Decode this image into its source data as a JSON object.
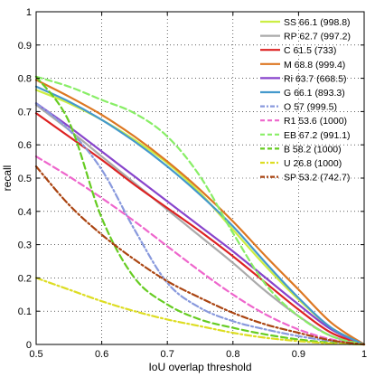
{
  "chart_data": {
    "type": "line",
    "xlabel": "IoU overlap threshold",
    "ylabel": "recall",
    "xlim": [
      0.5,
      1.0
    ],
    "ylim": [
      0,
      1
    ],
    "x_ticks": [
      "0.5",
      "0.6",
      "0.7",
      "0.8",
      "0.9",
      "1"
    ],
    "y_ticks": [
      "0",
      "0.1",
      "0.2",
      "0.3",
      "0.4",
      "0.5",
      "0.6",
      "0.7",
      "0.8",
      "0.9",
      "1"
    ],
    "grid": true,
    "legend_position": "top-right",
    "series": [
      {
        "name": "SS 66.1 (998.8)",
        "color": "#ccee44",
        "dash": "solid",
        "x": [
          0.5,
          0.55,
          0.6,
          0.65,
          0.7,
          0.75,
          0.8,
          0.85,
          0.9,
          0.95,
          1.0
        ],
        "y": [
          0.765,
          0.725,
          0.675,
          0.615,
          0.545,
          0.455,
          0.345,
          0.235,
          0.135,
          0.05,
          0.0
        ]
      },
      {
        "name": "RP 62.7 (997.2)",
        "color": "#aaaaaa",
        "dash": "solid",
        "x": [
          0.5,
          0.55,
          0.6,
          0.65,
          0.7,
          0.75,
          0.8,
          0.85,
          0.9,
          0.95,
          1.0
        ],
        "y": [
          0.72,
          0.645,
          0.565,
          0.485,
          0.405,
          0.325,
          0.245,
          0.16,
          0.085,
          0.025,
          0.0
        ]
      },
      {
        "name": "C 61.5 (733)",
        "color": "#dd2222",
        "dash": "solid",
        "x": [
          0.5,
          0.55,
          0.6,
          0.65,
          0.7,
          0.75,
          0.8,
          0.85,
          0.9,
          0.95,
          1.0
        ],
        "y": [
          0.695,
          0.625,
          0.555,
          0.48,
          0.41,
          0.34,
          0.265,
          0.185,
          0.105,
          0.035,
          0.0
        ]
      },
      {
        "name": "M 68.8 (999.4)",
        "color": "#dd7722",
        "dash": "solid",
        "x": [
          0.5,
          0.55,
          0.6,
          0.65,
          0.7,
          0.75,
          0.8,
          0.85,
          0.9,
          0.95,
          1.0
        ],
        "y": [
          0.795,
          0.745,
          0.69,
          0.625,
          0.55,
          0.465,
          0.37,
          0.265,
          0.165,
          0.065,
          0.0
        ]
      },
      {
        "name": "Ri 63.7 (668.5)",
        "color": "#8844cc",
        "dash": "solid",
        "x": [
          0.5,
          0.55,
          0.6,
          0.65,
          0.7,
          0.75,
          0.8,
          0.85,
          0.9,
          0.95,
          1.0
        ],
        "y": [
          0.725,
          0.655,
          0.58,
          0.505,
          0.43,
          0.355,
          0.28,
          0.2,
          0.12,
          0.045,
          0.0
        ]
      },
      {
        "name": "G 66.1 (893.3)",
        "color": "#4499cc",
        "dash": "solid",
        "x": [
          0.5,
          0.55,
          0.6,
          0.65,
          0.7,
          0.75,
          0.8,
          0.85,
          0.9,
          0.95,
          1.0
        ],
        "y": [
          0.775,
          0.73,
          0.675,
          0.61,
          0.535,
          0.45,
          0.355,
          0.245,
          0.14,
          0.05,
          0.0
        ]
      },
      {
        "name": "O 57 (999.5)",
        "color": "#8899dd",
        "dash": "dashdot",
        "x": [
          0.5,
          0.55,
          0.6,
          0.65,
          0.7,
          0.75,
          0.8,
          0.85,
          0.9,
          0.95,
          1.0
        ],
        "y": [
          0.725,
          0.645,
          0.525,
          0.345,
          0.185,
          0.11,
          0.07,
          0.045,
          0.025,
          0.01,
          0.0
        ]
      },
      {
        "name": "R1 53.6 (1000)",
        "color": "#ee66cc",
        "dash": "dashed",
        "x": [
          0.5,
          0.55,
          0.6,
          0.65,
          0.7,
          0.75,
          0.8,
          0.85,
          0.9,
          0.95,
          1.0
        ],
        "y": [
          0.565,
          0.505,
          0.44,
          0.37,
          0.295,
          0.22,
          0.15,
          0.09,
          0.045,
          0.015,
          0.0
        ]
      },
      {
        "name": "EB 67.2 (991.1)",
        "color": "#88ee66",
        "dash": "dashed",
        "x": [
          0.5,
          0.55,
          0.6,
          0.65,
          0.7,
          0.75,
          0.8,
          0.85,
          0.9,
          0.95,
          1.0
        ],
        "y": [
          0.805,
          0.775,
          0.735,
          0.695,
          0.625,
          0.505,
          0.335,
          0.18,
          0.085,
          0.025,
          0.0
        ]
      },
      {
        "name": "B 58.2 (1000)",
        "color": "#66cc22",
        "dash": "dashed",
        "x": [
          0.5,
          0.55,
          0.6,
          0.65,
          0.7,
          0.75,
          0.8,
          0.85,
          0.9,
          0.95,
          1.0
        ],
        "y": [
          0.805,
          0.67,
          0.38,
          0.2,
          0.12,
          0.075,
          0.05,
          0.03,
          0.015,
          0.005,
          0.0
        ]
      },
      {
        "name": "U 26.8 (1000)",
        "color": "#dddd22",
        "dash": "dashdot",
        "x": [
          0.5,
          0.55,
          0.6,
          0.65,
          0.7,
          0.75,
          0.8,
          0.85,
          0.9,
          0.95,
          1.0
        ],
        "y": [
          0.2,
          0.165,
          0.13,
          0.1,
          0.075,
          0.055,
          0.035,
          0.02,
          0.01,
          0.003,
          0.0
        ]
      },
      {
        "name": "SP 53.2 (742.7)",
        "color": "#aa4411",
        "dash": "dashdot",
        "x": [
          0.5,
          0.55,
          0.6,
          0.65,
          0.7,
          0.75,
          0.8,
          0.85,
          0.9,
          0.95,
          1.0
        ],
        "y": [
          0.535,
          0.42,
          0.33,
          0.255,
          0.19,
          0.14,
          0.095,
          0.06,
          0.035,
          0.012,
          0.0
        ]
      }
    ]
  }
}
